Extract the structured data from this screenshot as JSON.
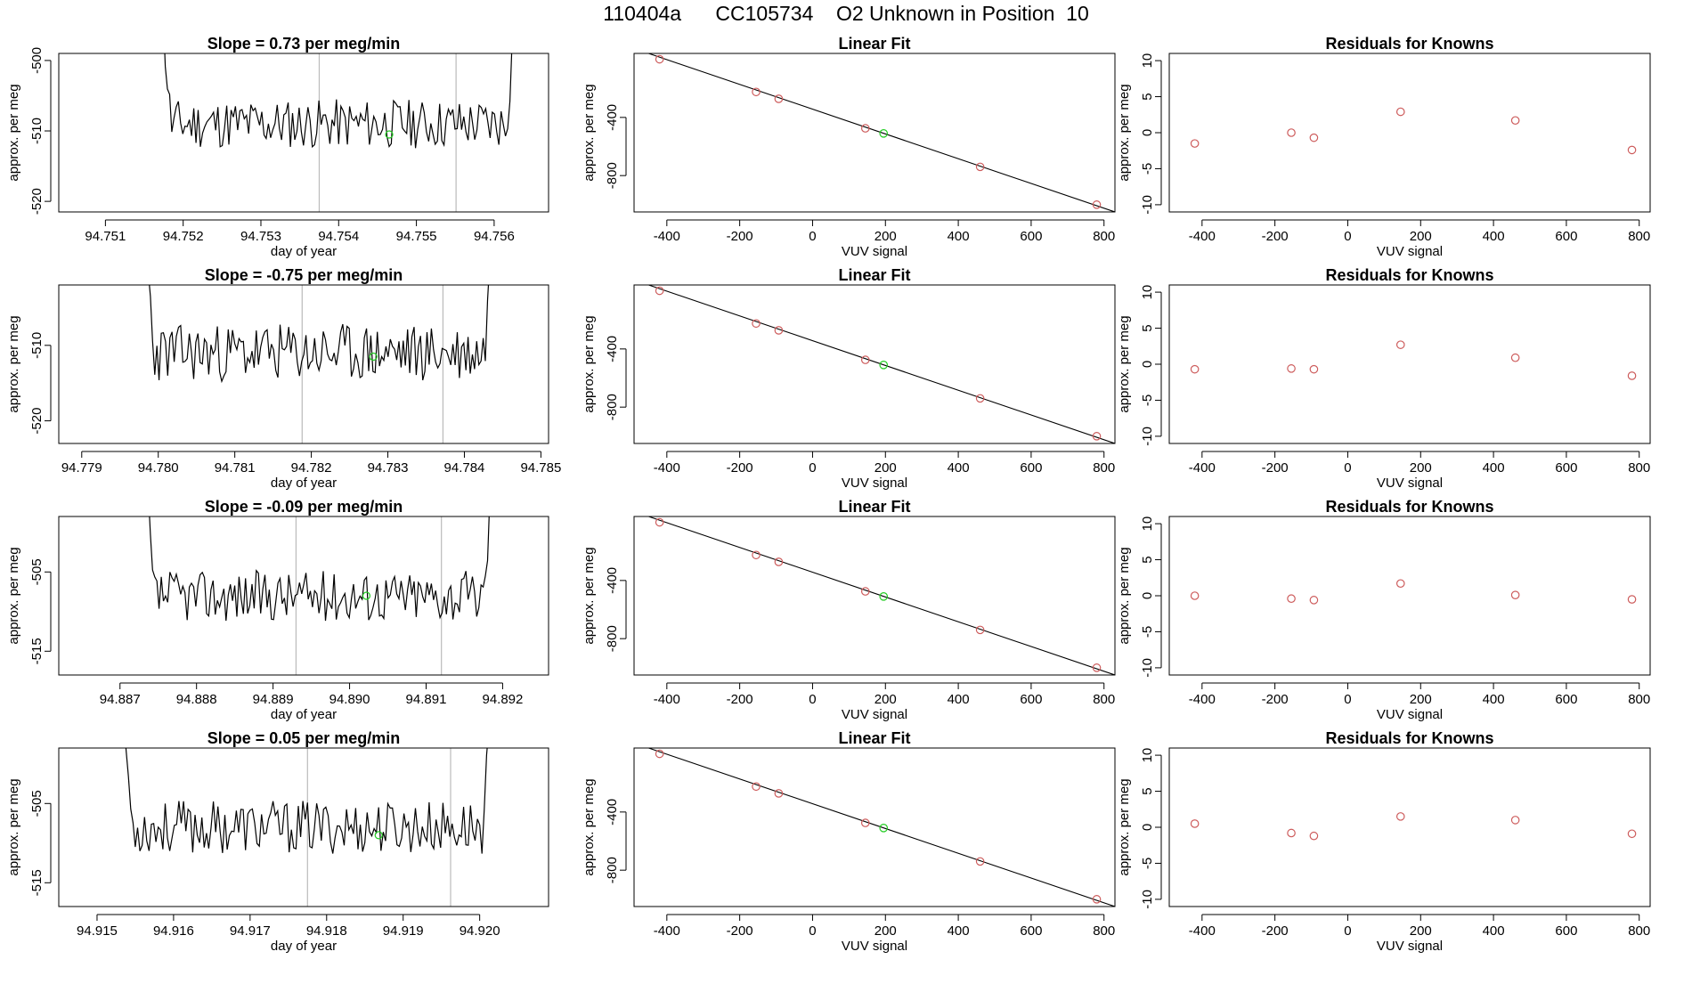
{
  "title": "110404a      CC105734    O2 Unknown in Position  10",
  "colors": {
    "known": "#cd5c5c",
    "unknown": "#22cc22",
    "line": "#000000",
    "vline": "#bbbbbb"
  },
  "chart_data": [
    {
      "type": "line",
      "title": "Slope =  0.73  per meg/min",
      "xlabel": "day of year",
      "ylabel": "approx. per meg",
      "xlim": [
        94.7504,
        94.7567
      ],
      "ylim": [
        -521.5,
        -499
      ],
      "xticks": [
        "94.751",
        "94.752",
        "94.753",
        "94.754",
        "94.755",
        "94.756"
      ],
      "xtick_values": [
        94.751,
        94.752,
        94.753,
        94.754,
        94.755,
        94.756
      ],
      "yticks": [
        "-500",
        "-510",
        "-520"
      ],
      "ytick_values": [
        -500,
        -510,
        -520
      ],
      "series_start": 94.7516,
      "series_end": 94.7564,
      "series_mean": -509,
      "series_amp": 2.2,
      "seed": 11,
      "vlines": [
        94.75375,
        94.75551
      ],
      "unknown_point": [
        94.75465,
        -510.5
      ]
    },
    {
      "type": "scatter",
      "title": "Linear Fit",
      "xlabel": "VUV signal",
      "ylabel": "approx. per meg",
      "xlim": [
        -490,
        830
      ],
      "ylim": [
        -1050,
        40
      ],
      "xticks": [
        "-400",
        "-200",
        "0",
        "200",
        "400",
        "600",
        "800"
      ],
      "xtick_values": [
        -400,
        -200,
        0,
        200,
        400,
        600,
        800
      ],
      "yticks": [
        "-400",
        "-800"
      ],
      "ytick_values": [
        -400,
        -800
      ],
      "fit_line": [
        [
          -450,
          40
        ],
        [
          830,
          -1050
        ]
      ],
      "known_x": [
        -420,
        -155,
        -93,
        145,
        460,
        780
      ],
      "known_y": [
        0,
        -225,
        -272,
        -475,
        -740,
        -1000
      ],
      "unknown_point": [
        195,
        -510
      ]
    },
    {
      "type": "scatter",
      "title": "Residuals for Knowns",
      "xlabel": "VUV signal",
      "ylabel": "approx. per meg",
      "xlim": [
        -490,
        830
      ],
      "ylim": [
        -11,
        11
      ],
      "xticks": [
        "-400",
        "-200",
        "0",
        "200",
        "400",
        "600",
        "800"
      ],
      "xtick_values": [
        -400,
        -200,
        0,
        200,
        400,
        600,
        800
      ],
      "yticks": [
        "10",
        "5",
        "0",
        "-5",
        "-10"
      ],
      "ytick_values": [
        10,
        5,
        0,
        -5,
        -10
      ],
      "known_x": [
        -420,
        -155,
        -93,
        145,
        460,
        780
      ],
      "known_y": [
        -1.5,
        0,
        -0.7,
        2.9,
        1.7,
        -2.4
      ]
    },
    {
      "type": "line",
      "title": "Slope =  -0.75  per meg/min",
      "xlabel": "day of year",
      "ylabel": "approx. per meg",
      "xlim": [
        94.7787,
        94.7851
      ],
      "ylim": [
        -523,
        -502
      ],
      "xticks": [
        "94.779",
        "94.780",
        "94.781",
        "94.782",
        "94.783",
        "94.784",
        "94.785"
      ],
      "xtick_values": [
        94.779,
        94.78,
        94.781,
        94.782,
        94.783,
        94.784,
        94.785
      ],
      "yticks": [
        "-510",
        "-520"
      ],
      "ytick_values": [
        -510,
        -520
      ],
      "series_start": 94.7797,
      "series_end": 94.7845,
      "series_mean": -511,
      "series_amp": 2.4,
      "seed": 23,
      "vlines": [
        94.78188,
        94.78372
      ],
      "unknown_point": [
        94.78281,
        -511.5
      ]
    },
    {
      "type": "scatter",
      "title": "Linear Fit",
      "xlabel": "VUV signal",
      "ylabel": "approx. per meg",
      "xlim": [
        -490,
        830
      ],
      "ylim": [
        -1050,
        40
      ],
      "xticks": [
        "-400",
        "-200",
        "0",
        "200",
        "400",
        "600",
        "800"
      ],
      "xtick_values": [
        -400,
        -200,
        0,
        200,
        400,
        600,
        800
      ],
      "yticks": [
        "-400",
        "-800"
      ],
      "ytick_values": [
        -400,
        -800
      ],
      "fit_line": [
        [
          -450,
          40
        ],
        [
          830,
          -1050
        ]
      ],
      "known_x": [
        -420,
        -155,
        -93,
        145,
        460,
        780
      ],
      "known_y": [
        0,
        -225,
        -272,
        -475,
        -740,
        -1000
      ],
      "unknown_point": [
        195,
        -510
      ]
    },
    {
      "type": "scatter",
      "title": "Residuals for Knowns",
      "xlabel": "VUV signal",
      "ylabel": "approx. per meg",
      "xlim": [
        -490,
        830
      ],
      "ylim": [
        -11,
        11
      ],
      "xticks": [
        "-400",
        "-200",
        "0",
        "200",
        "400",
        "600",
        "800"
      ],
      "xtick_values": [
        -400,
        -200,
        0,
        200,
        400,
        600,
        800
      ],
      "yticks": [
        "10",
        "5",
        "0",
        "-5",
        "-10"
      ],
      "ytick_values": [
        10,
        5,
        0,
        -5,
        -10
      ],
      "known_x": [
        -420,
        -155,
        -93,
        145,
        460,
        780
      ],
      "known_y": [
        -0.7,
        -0.6,
        -0.7,
        2.7,
        0.9,
        -1.6
      ]
    },
    {
      "type": "line",
      "title": "Slope =  -0.09  per meg/min",
      "xlabel": "day of year",
      "ylabel": "approx. per meg",
      "xlim": [
        94.8862,
        94.8926
      ],
      "ylim": [
        -518,
        -498
      ],
      "xticks": [
        "94.887",
        "94.888",
        "94.889",
        "94.890",
        "94.891",
        "94.892"
      ],
      "xtick_values": [
        94.887,
        94.888,
        94.889,
        94.89,
        94.891,
        94.892
      ],
      "yticks": [
        "-505",
        "-515"
      ],
      "ytick_values": [
        -505,
        -515
      ],
      "series_start": 94.8872,
      "series_end": 94.892,
      "series_mean": -508,
      "series_amp": 2.0,
      "seed": 37,
      "vlines": [
        94.8893,
        94.8912
      ],
      "unknown_point": [
        94.89022,
        -508
      ]
    },
    {
      "type": "scatter",
      "title": "Linear Fit",
      "xlabel": "VUV signal",
      "ylabel": "approx. per meg",
      "xlim": [
        -490,
        830
      ],
      "ylim": [
        -1050,
        40
      ],
      "xticks": [
        "-400",
        "-200",
        "0",
        "200",
        "400",
        "600",
        "800"
      ],
      "xtick_values": [
        -400,
        -200,
        0,
        200,
        400,
        600,
        800
      ],
      "yticks": [
        "-400",
        "-800"
      ],
      "ytick_values": [
        -400,
        -800
      ],
      "fit_line": [
        [
          -450,
          40
        ],
        [
          830,
          -1050
        ]
      ],
      "known_x": [
        -420,
        -155,
        -93,
        145,
        460,
        780
      ],
      "known_y": [
        0,
        -225,
        -272,
        -475,
        -740,
        -1000
      ],
      "unknown_point": [
        195,
        -510
      ]
    },
    {
      "type": "scatter",
      "title": "Residuals for Knowns",
      "xlabel": "VUV signal",
      "ylabel": "approx. per meg",
      "xlim": [
        -490,
        830
      ],
      "ylim": [
        -11,
        11
      ],
      "xticks": [
        "-400",
        "-200",
        "0",
        "200",
        "400",
        "600",
        "800"
      ],
      "xtick_values": [
        -400,
        -200,
        0,
        200,
        400,
        600,
        800
      ],
      "yticks": [
        "10",
        "5",
        "0",
        "-5",
        "-10"
      ],
      "ytick_values": [
        10,
        5,
        0,
        -5,
        -10
      ],
      "known_x": [
        -420,
        -155,
        -93,
        145,
        460,
        780
      ],
      "known_y": [
        0,
        -0.4,
        -0.6,
        1.7,
        0.1,
        -0.5
      ]
    },
    {
      "type": "line",
      "title": "Slope =  0.05  per meg/min",
      "xlabel": "day of year",
      "ylabel": "approx. per meg",
      "xlim": [
        94.9145,
        94.9209
      ],
      "ylim": [
        -518,
        -498
      ],
      "xticks": [
        "94.915",
        "94.916",
        "94.917",
        "94.918",
        "94.919",
        "94.920"
      ],
      "xtick_values": [
        94.915,
        94.916,
        94.917,
        94.918,
        94.919,
        94.92
      ],
      "yticks": [
        "-505",
        "-515"
      ],
      "ytick_values": [
        -505,
        -515
      ],
      "series_start": 94.9152,
      "series_end": 94.9203,
      "series_mean": -508,
      "series_amp": 2.1,
      "seed": 53,
      "vlines": [
        94.91775,
        94.91962
      ],
      "unknown_point": [
        94.91868,
        -509
      ]
    },
    {
      "type": "scatter",
      "title": "Linear Fit",
      "xlabel": "VUV signal",
      "ylabel": "approx. per meg",
      "xlim": [
        -490,
        830
      ],
      "ylim": [
        -1050,
        40
      ],
      "xticks": [
        "-400",
        "-200",
        "0",
        "200",
        "400",
        "600",
        "800"
      ],
      "xtick_values": [
        -400,
        -200,
        0,
        200,
        400,
        600,
        800
      ],
      "yticks": [
        "-400",
        "-800"
      ],
      "ytick_values": [
        -400,
        -800
      ],
      "fit_line": [
        [
          -450,
          40
        ],
        [
          830,
          -1050
        ]
      ],
      "known_x": [
        -420,
        -155,
        -93,
        145,
        460,
        780
      ],
      "known_y": [
        0,
        -225,
        -272,
        -475,
        -740,
        -1000
      ],
      "unknown_point": [
        195,
        -510
      ]
    },
    {
      "type": "scatter",
      "title": "Residuals for Knowns",
      "xlabel": "VUV signal",
      "ylabel": "approx. per meg",
      "xlim": [
        -490,
        830
      ],
      "ylim": [
        -11,
        11
      ],
      "xticks": [
        "-400",
        "-200",
        "0",
        "200",
        "400",
        "600",
        "800"
      ],
      "xtick_values": [
        -400,
        -200,
        0,
        200,
        400,
        600,
        800
      ],
      "yticks": [
        "10",
        "5",
        "0",
        "-5",
        "-10"
      ],
      "ytick_values": [
        10,
        5,
        0,
        -5,
        -10
      ],
      "known_x": [
        -420,
        -155,
        -93,
        145,
        460,
        780
      ],
      "known_y": [
        0.5,
        -0.8,
        -1.2,
        1.5,
        1.0,
        -0.9
      ]
    }
  ]
}
